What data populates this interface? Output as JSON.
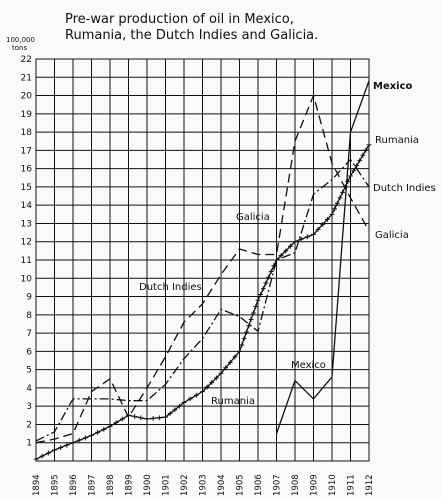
{
  "chart_data": {
    "type": "line",
    "title_line1": "Pre-war production of oil in Mexico,",
    "title_line2": "Rumania, the Dutch Indies and Galicia.",
    "unit_line1": "100,000",
    "unit_line2": "tons",
    "ylim": [
      0,
      22
    ],
    "yticks": [
      "1",
      "2",
      "3",
      "4",
      "5",
      "6",
      "7",
      "8",
      "9",
      "10",
      "11",
      "12",
      "13",
      "14",
      "15",
      "16",
      "17",
      "18",
      "19",
      "20",
      "21",
      "22"
    ],
    "x": [
      "1894",
      "1895",
      "1896",
      "1897",
      "1898",
      "1899",
      "1900",
      "1901",
      "1902",
      "1903",
      "1904",
      "1905",
      "1906",
      "1907",
      "1908",
      "1909",
      "1910",
      "1911",
      "1912"
    ],
    "grid": true,
    "series": [
      {
        "name": "Mexico",
        "style": "solid",
        "inline_label": "Mexico",
        "x": [
          "1907",
          "1908",
          "1909",
          "1910",
          "1911",
          "1912"
        ],
        "values": [
          1.5,
          4.4,
          3.4,
          4.6,
          18.0,
          20.8
        ]
      },
      {
        "name": "Rumania",
        "style": "cross",
        "inline_label": "Rumania",
        "x": [
          "1894",
          "1895",
          "1896",
          "1897",
          "1898",
          "1899",
          "1900",
          "1901",
          "1902",
          "1903",
          "1904",
          "1905",
          "1906",
          "1907",
          "1908",
          "1909",
          "1910",
          "1911",
          "1912"
        ],
        "values": [
          0.1,
          0.6,
          1.0,
          1.4,
          1.9,
          2.5,
          2.3,
          2.4,
          3.2,
          3.8,
          4.8,
          6.0,
          8.8,
          11.0,
          12.0,
          12.4,
          13.5,
          15.6,
          17.3
        ]
      },
      {
        "name": "Dutch Indies",
        "style": "dashdot",
        "inline_label": "Dutch Indies",
        "x": [
          "1894",
          "1895",
          "1896",
          "1897",
          "1898",
          "1899",
          "1900",
          "1901",
          "1902",
          "1903",
          "1904",
          "1905",
          "1906",
          "1907",
          "1908",
          "1909",
          "1910",
          "1911",
          "1912"
        ],
        "values": [
          1.1,
          1.6,
          3.4,
          3.4,
          3.4,
          3.3,
          3.3,
          4.2,
          5.6,
          6.7,
          8.3,
          7.9,
          7.1,
          11.0,
          11.4,
          14.6,
          15.4,
          16.5,
          15.0
        ]
      },
      {
        "name": "Galicia",
        "style": "dashed",
        "inline_label": "Galicia",
        "x": [
          "1894",
          "1895",
          "1896",
          "1897",
          "1898",
          "1899",
          "1900",
          "1901",
          "1902",
          "1903",
          "1904",
          "1905",
          "1906",
          "1907",
          "1908",
          "1909",
          "1910",
          "1911",
          "1912"
        ],
        "values": [
          1.0,
          1.2,
          1.5,
          3.8,
          4.5,
          2.4,
          4.0,
          5.7,
          7.6,
          8.6,
          10.2,
          11.6,
          11.3,
          11.3,
          17.5,
          20.0,
          16.3,
          14.4,
          12.6
        ]
      }
    ]
  }
}
